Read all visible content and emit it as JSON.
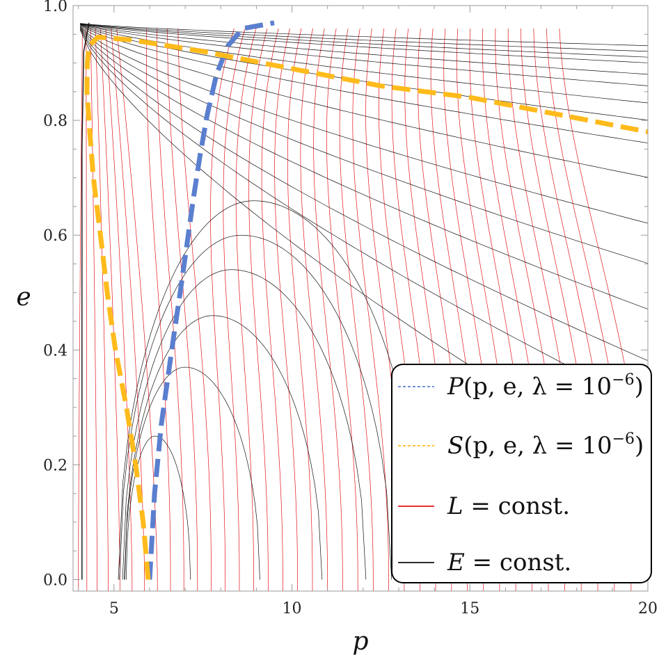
{
  "chart_data": {
    "type": "line",
    "title": "",
    "xlabel": "p",
    "ylabel": "e",
    "xlim": [
      3.85,
      20.0
    ],
    "ylim": [
      -0.02,
      1.0
    ],
    "x_ticks": [
      5,
      10,
      15,
      20
    ],
    "y_ticks": [
      0.0,
      0.2,
      0.4,
      0.6,
      0.8,
      1.0
    ],
    "x_tick_labels": [
      "5",
      "10",
      "15",
      "20"
    ],
    "y_tick_labels": [
      "0.0",
      "0.2",
      "0.4",
      "0.6",
      "0.8",
      "1.0"
    ],
    "grid": false,
    "legend_position": "bottom-right",
    "series": [
      {
        "name": "P(p, e, λ = 10⁻⁶)",
        "color": "#5b7fcf",
        "style": "dashed",
        "x": [
          6.0,
          6.14,
          6.33,
          6.51,
          6.67,
          6.86,
          7.04,
          7.22,
          7.42,
          7.62,
          7.88,
          8.2,
          8.62,
          9.5
        ],
        "y": [
          0.0,
          0.15,
          0.27,
          0.35,
          0.42,
          0.5,
          0.58,
          0.66,
          0.74,
          0.81,
          0.88,
          0.93,
          0.96,
          0.97
        ]
      },
      {
        "name": "S(p, e, λ = 10⁻⁶)",
        "color": "#ffbb1c",
        "style": "dashed",
        "x": [
          5.96,
          5.82,
          5.61,
          5.35,
          5.04,
          4.81,
          4.62,
          4.42,
          4.32,
          4.24,
          4.25,
          4.3,
          4.55,
          5.5,
          7.5,
          10.0,
          12.5,
          15.0,
          17.5,
          20.0
        ],
        "y": [
          0.0,
          0.1,
          0.2,
          0.3,
          0.4,
          0.5,
          0.6,
          0.7,
          0.78,
          0.85,
          0.9,
          0.93,
          0.945,
          0.94,
          0.92,
          0.89,
          0.86,
          0.84,
          0.81,
          0.78
        ]
      },
      {
        "name": "L = const.",
        "color": "#e3131b",
        "style": "solid",
        "family": "contours"
      },
      {
        "name": "E = const.",
        "color": "#111111",
        "style": "solid",
        "family": "contours"
      }
    ],
    "legend": {
      "entries": [
        {
          "pre": "P",
          "post": "(p, e, λ = 10",
          "exp": "−6",
          "close": ")"
        },
        {
          "pre": "S",
          "post": "(p, e, λ = 10",
          "exp": "−6",
          "close": ")"
        },
        {
          "pre": "L",
          "post": " = const.",
          "exp": "",
          "close": ""
        },
        {
          "pre": "E",
          "post": " = const.",
          "exp": "",
          "close": ""
        }
      ]
    },
    "contours": {
      "L_red": {
        "count": 40,
        "bottom_range": [
          4.0,
          20.0
        ],
        "color": "#e3131b"
      },
      "E_black": {
        "arc_tops": [
          0.25,
          0.37,
          0.46,
          0.54,
          0.6,
          0.66
        ],
        "arc_feet": [
          [
            5.2,
            7.1
          ],
          [
            5.0,
            9.0
          ],
          [
            4.85,
            10.7
          ],
          [
            4.7,
            11.9
          ],
          [
            4.55,
            12.6
          ],
          [
            4.45,
            13.4
          ]
        ],
        "right_edge_values": [
          0.18,
          0.3,
          0.38,
          0.47,
          0.55,
          0.62,
          0.7,
          0.76,
          0.8,
          0.83,
          0.86,
          0.88,
          0.9,
          0.91,
          0.92,
          0.93
        ],
        "color": "#111111"
      }
    }
  }
}
